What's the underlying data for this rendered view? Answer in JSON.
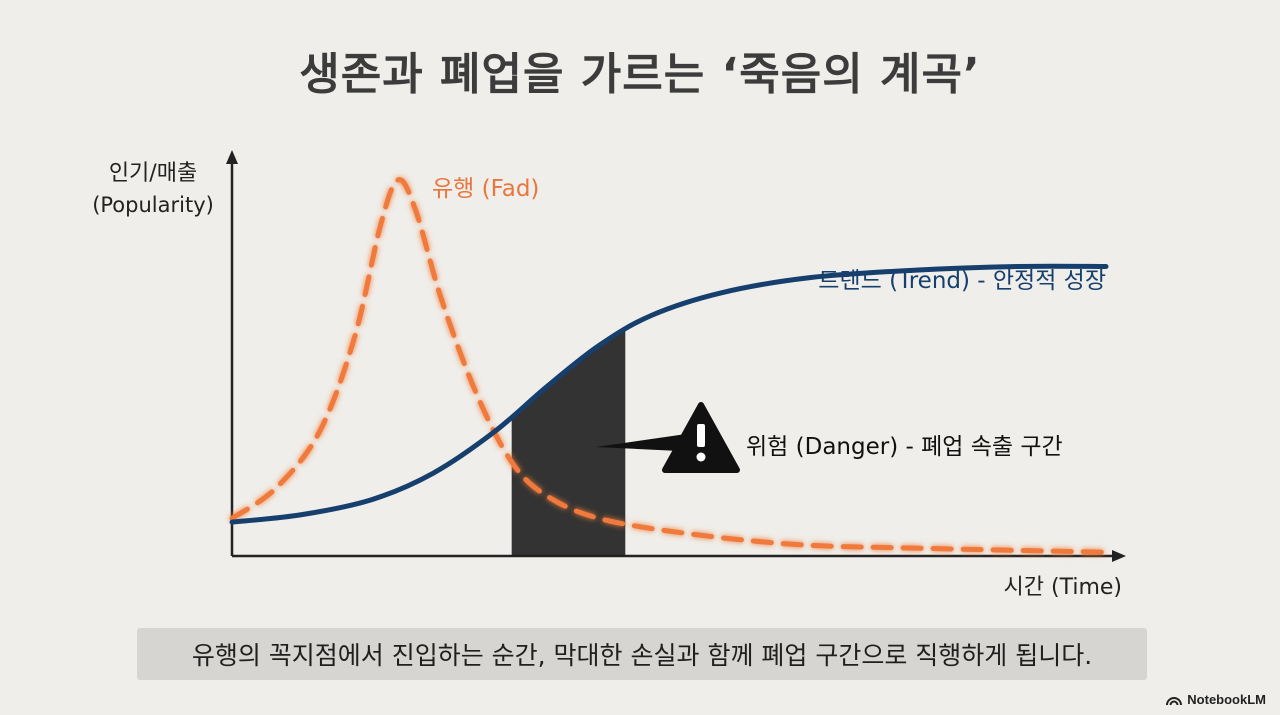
{
  "title": "생존과 폐업을 가르는 ‘죽음의 계곡’",
  "caption": "유행의 꼭지점에서 진입하는 순간, 막대한 손실과 함께 폐업 구간으로 직행하게 됩니다.",
  "brand": {
    "name": "NotebookLM",
    "icon": "notebooklm-logo-icon"
  },
  "colors": {
    "background": "#efeeea",
    "fad": "#f07a3a",
    "trend": "#173f6e",
    "danger": "#333333",
    "axis": "#222222"
  },
  "chart_data": {
    "type": "line",
    "ylabel": "인기/매출",
    "ylabel_sub": "(Popularity)",
    "xlabel": "시간 (Time)",
    "grid": false,
    "series": [
      {
        "name": "유행 (Fad)",
        "style": "dashed",
        "color": "#f07a3a",
        "values": [
          [
            0,
            0.1
          ],
          [
            0.05,
            0.18
          ],
          [
            0.1,
            0.33
          ],
          [
            0.14,
            0.58
          ],
          [
            0.17,
            0.88
          ],
          [
            0.19,
            1.0
          ],
          [
            0.21,
            0.92
          ],
          [
            0.24,
            0.68
          ],
          [
            0.28,
            0.43
          ],
          [
            0.32,
            0.25
          ],
          [
            0.36,
            0.16
          ],
          [
            0.42,
            0.1
          ],
          [
            0.52,
            0.06
          ],
          [
            0.65,
            0.03
          ],
          [
            0.8,
            0.02
          ],
          [
            1.0,
            0.01
          ]
        ]
      },
      {
        "name": "트렌드 (Trend) - 안정적 성장",
        "style": "solid",
        "color": "#173f6e",
        "values": [
          [
            0,
            0.09
          ],
          [
            0.08,
            0.11
          ],
          [
            0.16,
            0.15
          ],
          [
            0.23,
            0.22
          ],
          [
            0.3,
            0.33
          ],
          [
            0.36,
            0.45
          ],
          [
            0.42,
            0.56
          ],
          [
            0.48,
            0.64
          ],
          [
            0.56,
            0.7
          ],
          [
            0.66,
            0.74
          ],
          [
            0.78,
            0.76
          ],
          [
            0.9,
            0.77
          ],
          [
            1.0,
            0.77
          ]
        ]
      }
    ],
    "annotations": [
      {
        "label": "위험 (Danger) - 폐업 속출 구간",
        "type": "shaded-region",
        "x_range": [
          0.32,
          0.45
        ],
        "icon": "warning-icon"
      }
    ]
  }
}
